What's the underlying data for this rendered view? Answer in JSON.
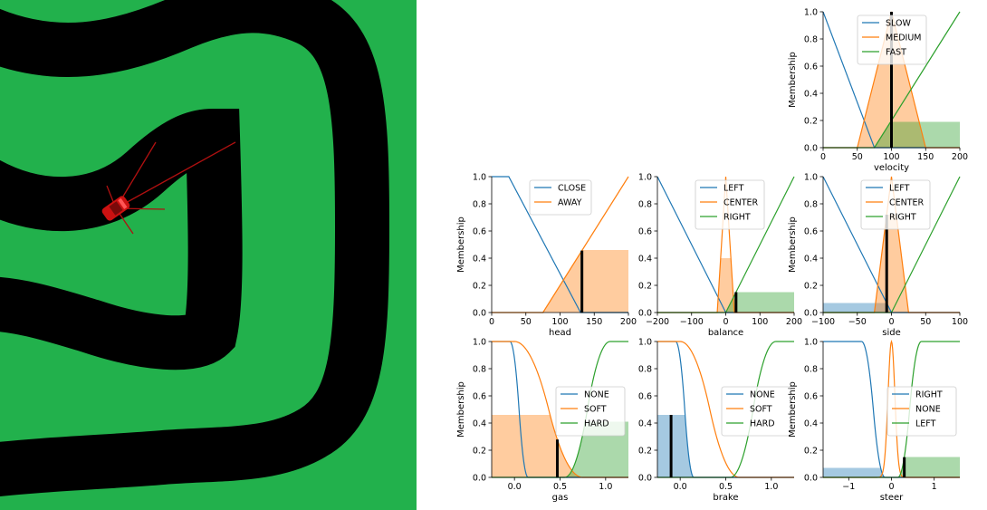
{
  "colors": {
    "grass": "#22b14c",
    "road": "#000000",
    "car": "#cc1111",
    "sensor": "#b01010",
    "blue": "#1f77b4",
    "orange": "#ff7f0e",
    "green": "#2ca02c",
    "indicator": "#000000"
  },
  "scene": {
    "description_elements": [
      "grass",
      "road",
      "car",
      "sensor-rays"
    ]
  },
  "chart_data": [
    {
      "id": "velocity",
      "type": "line",
      "xlabel": "velocity",
      "ylabel": "Membership",
      "xlim": [
        0,
        200
      ],
      "ylim": [
        0,
        1
      ],
      "xticks": [
        0,
        50,
        100,
        150,
        200
      ],
      "xtick_labels": [
        "0",
        "50",
        "100",
        "150",
        "200"
      ],
      "yticks": [
        0,
        0.2,
        0.4,
        0.6,
        0.8,
        1.0
      ],
      "ytick_labels": [
        "0.0",
        "0.2",
        "0.4",
        "0.6",
        "0.8",
        "1.0"
      ],
      "legend": {
        "placement": "top-center"
      },
      "series": [
        {
          "name": "SLOW",
          "color": "blue",
          "shape": "tri",
          "params": [
            0,
            0,
            75
          ]
        },
        {
          "name": "MEDIUM",
          "color": "orange",
          "shape": "tri",
          "params": [
            50,
            100,
            150
          ]
        },
        {
          "name": "FAST",
          "color": "green",
          "shape": "tri",
          "params": [
            75,
            200,
            200
          ]
        }
      ],
      "fills": [
        {
          "series": "MEDIUM",
          "level": 1.0
        },
        {
          "series": "FAST",
          "level": 0.19
        }
      ],
      "indicator": 100
    },
    {
      "id": "head",
      "type": "line",
      "xlabel": "head",
      "ylabel": "Membership",
      "xlim": [
        0,
        200
      ],
      "ylim": [
        0,
        1
      ],
      "xticks": [
        0,
        50,
        100,
        150,
        200
      ],
      "xtick_labels": [
        "0",
        "50",
        "100",
        "150",
        "200"
      ],
      "yticks": [
        0,
        0.2,
        0.4,
        0.6,
        0.8,
        1.0
      ],
      "ytick_labels": [
        "0.0",
        "0.2",
        "0.4",
        "0.6",
        "0.8",
        "1.0"
      ],
      "legend": {
        "placement": "top-center"
      },
      "series": [
        {
          "name": "CLOSE",
          "color": "blue",
          "shape": "trap",
          "params": [
            0,
            0,
            25,
            130
          ]
        },
        {
          "name": "AWAY",
          "color": "orange",
          "shape": "tri",
          "params": [
            75,
            200,
            200
          ]
        }
      ],
      "fills": [
        {
          "series": "AWAY",
          "level": 0.46
        }
      ],
      "indicator": 132
    },
    {
      "id": "balance",
      "type": "line",
      "xlabel": "balance",
      "ylabel": "",
      "xlim": [
        -200,
        200
      ],
      "ylim": [
        0,
        1
      ],
      "xticks": [
        -200,
        -100,
        0,
        100,
        200
      ],
      "xtick_labels": [
        "−200",
        "−100",
        "0",
        "100",
        "200"
      ],
      "yticks": [
        0,
        0.2,
        0.4,
        0.6,
        0.8,
        1.0
      ],
      "ytick_labels": [
        "0.0",
        "0.2",
        "0.4",
        "0.6",
        "0.8",
        "1.0"
      ],
      "legend": {
        "placement": "top-center"
      },
      "series": [
        {
          "name": "LEFT",
          "color": "blue",
          "shape": "tri",
          "params": [
            -200,
            -200,
            0
          ]
        },
        {
          "name": "CENTER",
          "color": "orange",
          "shape": "tri",
          "params": [
            -25,
            0,
            25
          ]
        },
        {
          "name": "RIGHT",
          "color": "green",
          "shape": "tri",
          "params": [
            0,
            200,
            200
          ]
        }
      ],
      "fills": [
        {
          "series": "CENTER",
          "level": 0.4
        },
        {
          "series": "RIGHT",
          "level": 0.15
        }
      ],
      "indicator": 30
    },
    {
      "id": "side",
      "type": "line",
      "xlabel": "side",
      "ylabel": "Membership",
      "xlim": [
        -100,
        100
      ],
      "ylim": [
        0,
        1
      ],
      "xticks": [
        -100,
        -50,
        0,
        50,
        100
      ],
      "xtick_labels": [
        "−100",
        "−50",
        "0",
        "50",
        "100"
      ],
      "yticks": [
        0,
        0.2,
        0.4,
        0.6,
        0.8,
        1.0
      ],
      "ytick_labels": [
        "0.0",
        "0.2",
        "0.4",
        "0.6",
        "0.8",
        "1.0"
      ],
      "legend": {
        "placement": "top-center"
      },
      "series": [
        {
          "name": "LEFT",
          "color": "blue",
          "shape": "tri",
          "params": [
            -100,
            -100,
            0
          ]
        },
        {
          "name": "CENTER",
          "color": "orange",
          "shape": "tri",
          "params": [
            -25,
            0,
            25
          ]
        },
        {
          "name": "RIGHT",
          "color": "green",
          "shape": "tri",
          "params": [
            0,
            100,
            100
          ]
        }
      ],
      "fills": [
        {
          "series": "LEFT",
          "level": 0.07
        },
        {
          "series": "CENTER",
          "level": 0.72
        }
      ],
      "indicator": -7
    },
    {
      "id": "gas",
      "type": "line",
      "xlabel": "gas",
      "ylabel": "Membership",
      "xlim": [
        -0.25,
        1.25
      ],
      "ylim": [
        0,
        1
      ],
      "xticks": [
        0,
        0.5,
        1.0
      ],
      "xtick_labels": [
        "0.0",
        "0.5",
        "1.0"
      ],
      "yticks": [
        0,
        0.2,
        0.4,
        0.6,
        0.8,
        1.0
      ],
      "ytick_labels": [
        "0.0",
        "0.2",
        "0.4",
        "0.6",
        "0.8",
        "1.0"
      ],
      "legend": {
        "placement": "center-right"
      },
      "series": [
        {
          "name": "NONE",
          "color": "blue",
          "shape": "zmf",
          "params": [
            -0.05,
            0.15
          ]
        },
        {
          "name": "SOFT",
          "color": "orange",
          "shape": "zmf",
          "params": [
            0.0,
            0.75
          ]
        },
        {
          "name": "HARD",
          "color": "green",
          "shape": "smf",
          "params": [
            0.55,
            1.05
          ]
        }
      ],
      "fills": [
        {
          "series": "SOFT",
          "level": 0.46
        },
        {
          "series": "HARD",
          "level": 0.41
        }
      ],
      "indicator": 0.47
    },
    {
      "id": "brake",
      "type": "line",
      "xlabel": "brake",
      "ylabel": "",
      "xlim": [
        -0.25,
        1.25
      ],
      "ylim": [
        0,
        1
      ],
      "xticks": [
        0,
        0.5,
        1.0
      ],
      "xtick_labels": [
        "0.0",
        "0.5",
        "1.0"
      ],
      "yticks": [
        0,
        0.2,
        0.4,
        0.6,
        0.8,
        1.0
      ],
      "ytick_labels": [
        "0.0",
        "0.2",
        "0.4",
        "0.6",
        "0.8",
        "1.0"
      ],
      "legend": {
        "placement": "center-right"
      },
      "series": [
        {
          "name": "NONE",
          "color": "blue",
          "shape": "zmf",
          "params": [
            -0.05,
            0.15
          ]
        },
        {
          "name": "SOFT",
          "color": "orange",
          "shape": "zmf",
          "params": [
            0.0,
            0.65
          ]
        },
        {
          "name": "HARD",
          "color": "green",
          "shape": "smf",
          "params": [
            0.55,
            1.05
          ]
        }
      ],
      "fills": [
        {
          "series": "NONE",
          "level": 0.46
        }
      ],
      "indicator": -0.1
    },
    {
      "id": "steer",
      "type": "line",
      "xlabel": "steer",
      "ylabel": "Membership",
      "xlim": [
        -1.6,
        1.6
      ],
      "ylim": [
        0,
        1
      ],
      "xticks": [
        -1,
        0,
        1
      ],
      "xtick_labels": [
        "−1",
        "0",
        "1"
      ],
      "yticks": [
        0,
        0.2,
        0.4,
        0.6,
        0.8,
        1.0
      ],
      "ytick_labels": [
        "0.0",
        "0.2",
        "0.4",
        "0.6",
        "0.8",
        "1.0"
      ],
      "legend": {
        "placement": "center-right"
      },
      "series": [
        {
          "name": "RIGHT",
          "color": "blue",
          "shape": "zmf",
          "params": [
            -0.7,
            -0.15
          ]
        },
        {
          "name": "NONE",
          "color": "orange",
          "shape": "gauss",
          "params": [
            0,
            0.08
          ]
        },
        {
          "name": "LEFT",
          "color": "green",
          "shape": "smf",
          "params": [
            0.15,
            0.7
          ]
        }
      ],
      "fills": [
        {
          "series": "RIGHT",
          "level": 0.07
        },
        {
          "series": "LEFT",
          "level": 0.15
        }
      ],
      "indicator": 0.3
    }
  ]
}
